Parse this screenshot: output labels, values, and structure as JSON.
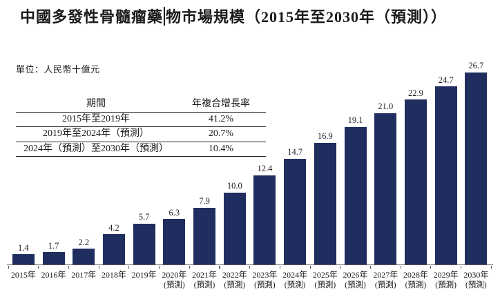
{
  "title": {
    "part1": "中國多發性骨髓瘤藥",
    "part2": "物市場規模（2015年至2030年（預測））"
  },
  "unit_label": "單位：人民幣十億元",
  "cagr_table": {
    "headers": [
      "期間",
      "年複合增長率"
    ],
    "rows": [
      {
        "period": "2015年至2019年",
        "cagr": "41.2%"
      },
      {
        "period": "2019年至2024年（預測）",
        "cagr": "20.7%"
      },
      {
        "period": "2024年（預測）至2030年（預測）",
        "cagr": "10.4%"
      }
    ]
  },
  "chart_data": {
    "type": "bar",
    "title": "中國多發性骨髓瘤藥物市場規模（2015年至2030年（預測））",
    "unit": "人民幣十億元",
    "categories": [
      "2015年",
      "2016年",
      "2017年",
      "2018年",
      "2019年",
      "2020年",
      "2021年",
      "2022年",
      "2023年",
      "2024年",
      "2025年",
      "2026年",
      "2027年",
      "2028年",
      "2029年",
      "2030年"
    ],
    "forecast_note": "(預測)",
    "forecast_from_index": 5,
    "values": [
      1.4,
      1.7,
      2.2,
      4.2,
      5.7,
      6.3,
      7.9,
      10.0,
      12.4,
      14.7,
      16.9,
      19.1,
      21.0,
      22.9,
      24.7,
      26.7
    ],
    "value_labels": true,
    "bar_color": "#1F2D5F",
    "axis_color": "#5a5a5a",
    "ylim": [
      0,
      28
    ],
    "grid": false,
    "legend": null
  }
}
